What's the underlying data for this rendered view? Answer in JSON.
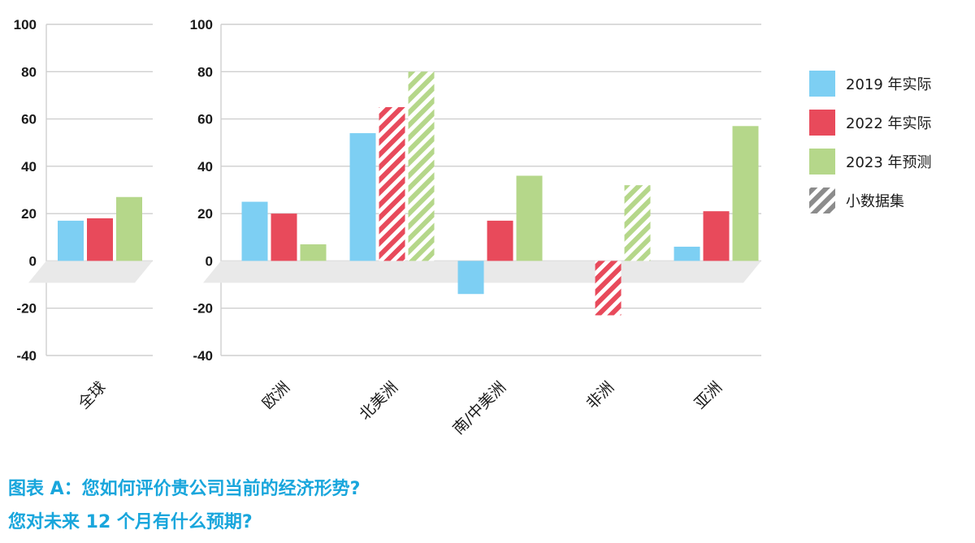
{
  "chart_data": {
    "type": "bar",
    "title": "图表 A：您如何评价贵公司当前的经济形势?",
    "subtitle": "您对未来 12 个月有什么预期?",
    "ylim": [
      -40,
      100
    ],
    "yticks": [
      100,
      80,
      60,
      40,
      20,
      0,
      -20,
      -40
    ],
    "grid": true,
    "legend_position": "right",
    "colors": {
      "2019": "#7dcff3",
      "2022": "#e84a5b",
      "2023": "#b5d78a",
      "hatch_legend": "#8c8c8c",
      "baseline": "#e9e9e9",
      "grid": "#cfcfcf"
    },
    "legend": [
      {
        "key": "2019",
        "label": "2019 年实际",
        "hatched": false
      },
      {
        "key": "2022",
        "label": "2022 年实际",
        "hatched": false
      },
      {
        "key": "2023",
        "label": "2023 年预测",
        "hatched": false
      },
      {
        "key": "hatch_legend",
        "label": "小数据集",
        "hatched": true
      }
    ],
    "panels": [
      {
        "categories": [
          "全球"
        ],
        "series": [
          {
            "key": "2019",
            "name": "2019 年实际",
            "values": [
              17
            ],
            "hatched": [
              false
            ]
          },
          {
            "key": "2022",
            "name": "2022 年实际",
            "values": [
              18
            ],
            "hatched": [
              false
            ]
          },
          {
            "key": "2023",
            "name": "2023 年预测",
            "values": [
              27
            ],
            "hatched": [
              false
            ]
          }
        ]
      },
      {
        "categories": [
          "欧洲",
          "北美洲",
          "南/中美洲",
          "非洲",
          "亚洲"
        ],
        "series": [
          {
            "key": "2019",
            "name": "2019 年实际",
            "values": [
              25,
              54,
              -14,
              0,
              6
            ],
            "hatched": [
              false,
              false,
              false,
              true,
              false
            ]
          },
          {
            "key": "2022",
            "name": "2022 年实际",
            "values": [
              20,
              65,
              17,
              -23,
              21
            ],
            "hatched": [
              false,
              true,
              false,
              true,
              false
            ]
          },
          {
            "key": "2023",
            "name": "2023 年预测",
            "values": [
              7,
              80,
              36,
              32,
              57
            ],
            "hatched": [
              false,
              true,
              false,
              true,
              false
            ]
          }
        ]
      }
    ]
  }
}
